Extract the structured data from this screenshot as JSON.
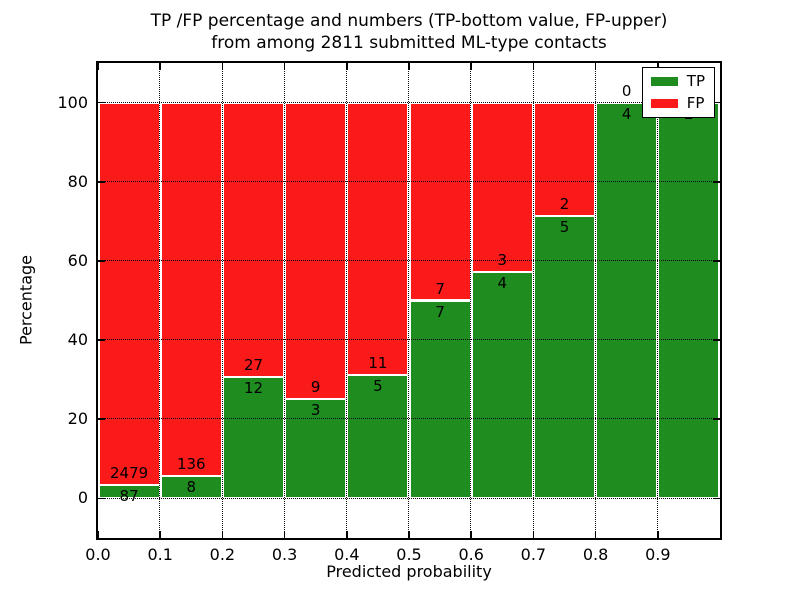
{
  "figure": {
    "title_line1": "TP /FP percentage and numbers (TP-bottom value, FP-upper)",
    "title_line2": "from among 2811 submitted ML-type contacts",
    "xlabel": "Predicted probability",
    "ylabel": "Percentage"
  },
  "chart_data": {
    "type": "bar",
    "stacked": true,
    "title": "TP /FP percentage and numbers (TP-bottom value, FP-upper)\nfrom among 2811 submitted ML-type contacts",
    "xlabel": "Predicted probability",
    "ylabel": "Percentage",
    "total_submitted": 2811,
    "xlim": [
      0.0,
      1.0
    ],
    "ylim": [
      -10,
      110
    ],
    "grid": "dotted",
    "legend_position": "upper right",
    "bin_width": 0.1,
    "categories": [
      "0.0-0.1",
      "0.1-0.2",
      "0.2-0.3",
      "0.3-0.4",
      "0.4-0.5",
      "0.5-0.6",
      "0.6-0.7",
      "0.7-0.8",
      "0.8-0.9",
      "0.9-1.0"
    ],
    "x_tick_values": [
      0.0,
      0.1,
      0.2,
      0.3,
      0.4,
      0.5,
      0.6,
      0.7,
      0.8,
      0.9
    ],
    "x_tick_labels": [
      "0.0",
      "0.1",
      "0.2",
      "0.3",
      "0.4",
      "0.5",
      "0.6",
      "0.7",
      "0.8",
      "0.9"
    ],
    "y_tick_values": [
      0,
      20,
      40,
      60,
      80,
      100
    ],
    "y_tick_labels": [
      "0",
      "20",
      "40",
      "60",
      "80",
      "100"
    ],
    "grid_x_values": [
      0.1,
      0.2,
      0.3,
      0.4,
      0.5,
      0.6,
      0.7,
      0.8,
      0.9
    ],
    "grid_y_values": [
      0,
      20,
      40,
      60,
      80,
      100
    ],
    "series": [
      {
        "name": "TP",
        "color": "#1f8c1f",
        "counts": [
          87,
          8,
          12,
          3,
          5,
          7,
          4,
          5,
          4,
          2
        ],
        "pct": [
          3.39,
          5.56,
          30.77,
          25.0,
          31.25,
          50.0,
          57.14,
          71.43,
          100.0,
          100.0
        ]
      },
      {
        "name": "FP",
        "color": "#fa1a1a",
        "counts": [
          2479,
          136,
          27,
          9,
          11,
          7,
          3,
          2,
          0,
          0
        ],
        "pct": [
          96.61,
          94.44,
          69.23,
          75.0,
          68.75,
          50.0,
          42.86,
          28.57,
          0.0,
          0.0
        ]
      }
    ]
  }
}
